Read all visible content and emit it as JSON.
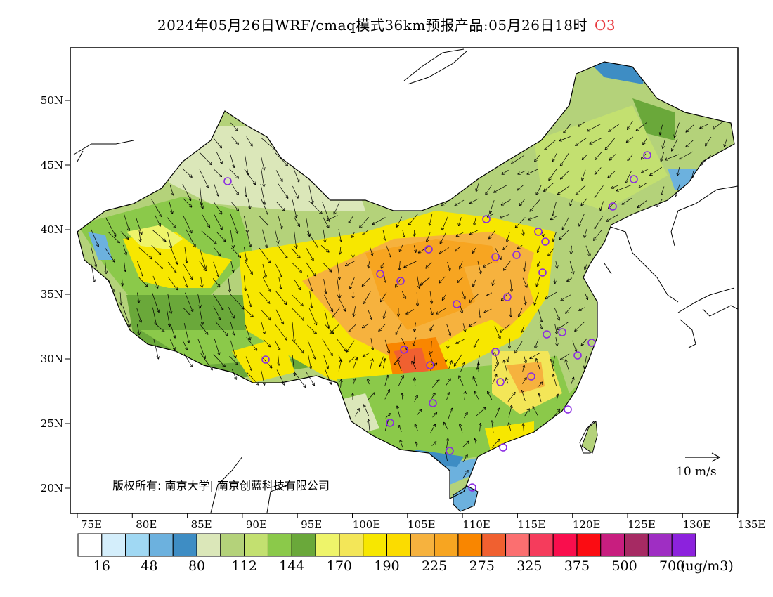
{
  "title": {
    "main": "2024年05月26日WRF/cmaq模式36km预报产品:05月26日18时",
    "variable": "O3"
  },
  "map": {
    "x_ticks": [
      "75E",
      "80E",
      "85E",
      "90E",
      "95E",
      "100E",
      "105E",
      "110E",
      "115E",
      "120E",
      "125E",
      "130E",
      "135E"
    ],
    "y_ticks": [
      "50N",
      "45N",
      "40N",
      "35N",
      "30N",
      "25N",
      "20N"
    ],
    "lon_range": [
      73,
      135
    ],
    "lat_range": [
      18,
      54
    ],
    "copyright": "版权所有: 南京大学| 南京创蓝科技有限公司",
    "wind_scale": "10 m/s",
    "station_marker_color": "#8a2be2"
  },
  "legend": {
    "unit": "(ug/m3)",
    "colors": [
      "#ffffff",
      "#d4eefb",
      "#a0d8f3",
      "#6cb1de",
      "#3e8dc4",
      "#dbe7b9",
      "#b4d27a",
      "#c3e070",
      "#8bc94a",
      "#6aa83a",
      "#eef46a",
      "#f3e658",
      "#f7e700",
      "#fbdc00",
      "#f6b23e",
      "#f7a521",
      "#f98600",
      "#f06030",
      "#fb6f70",
      "#f53c5c",
      "#f90e4d",
      "#fb0c12",
      "#c81e7f",
      "#a62a63",
      "#9f2ec3",
      "#8c22dd"
    ],
    "labels": [
      "16",
      "48",
      "80",
      "112",
      "144",
      "170",
      "190",
      "225",
      "275",
      "325",
      "375",
      "500",
      "700"
    ]
  }
}
